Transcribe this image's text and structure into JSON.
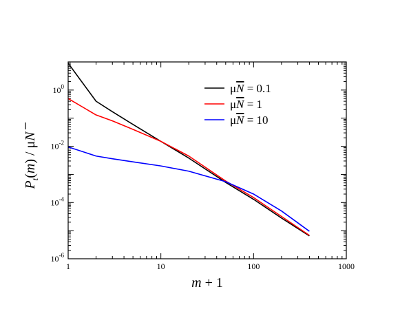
{
  "chart_data": {
    "type": "line",
    "xscale": "log",
    "yscale": "log",
    "xlim": [
      1,
      1000
    ],
    "ylim": [
      1e-06,
      10
    ],
    "xlabel": {
      "pre": "",
      "var": "m",
      "post": " + 1"
    },
    "ylabel": {
      "var": "P",
      "sub": "t",
      "mid": "(",
      "var2": "m",
      "post": ") / μ",
      "bar": "N"
    },
    "x_ticks": [
      {
        "value": 1,
        "label": "1"
      },
      {
        "value": 10,
        "label": "10"
      },
      {
        "value": 100,
        "label": "100"
      },
      {
        "value": 1000,
        "label": "1000"
      }
    ],
    "y_ticks": [
      {
        "value": 1,
        "base": "10",
        "exp": "0"
      },
      {
        "value": 0.01,
        "base": "10",
        "exp": "-2"
      },
      {
        "value": 0.0001,
        "base": "10",
        "exp": "-4"
      },
      {
        "value": 1e-06,
        "base": "10",
        "exp": "-6"
      }
    ],
    "legend_position": "top-right",
    "series": [
      {
        "name": "μN̄ = 0.1",
        "legend": {
          "pre": "μ",
          "bar": "N",
          "post": " = 0.1"
        },
        "color": "#000000",
        "points": [
          [
            1,
            9.0
          ],
          [
            2,
            0.4
          ],
          [
            3,
            0.17
          ],
          [
            5,
            0.06
          ],
          [
            10,
            0.015
          ],
          [
            20,
            0.0038
          ],
          [
            50,
            0.00052
          ],
          [
            100,
            0.00013
          ],
          [
            200,
            2.8e-05
          ],
          [
            400,
            6.5e-06
          ]
        ]
      },
      {
        "name": "μN̄ = 1",
        "legend": {
          "pre": "μ",
          "bar": "N",
          "post": " = 1"
        },
        "color": "#ff0000",
        "points": [
          [
            1,
            0.5
          ],
          [
            2,
            0.13
          ],
          [
            3,
            0.08
          ],
          [
            5,
            0.04
          ],
          [
            10,
            0.015
          ],
          [
            20,
            0.0045
          ],
          [
            50,
            0.00058
          ],
          [
            100,
            0.00015
          ],
          [
            200,
            3.2e-05
          ],
          [
            400,
            6.8e-06
          ]
        ]
      },
      {
        "name": "μN̄ = 10",
        "legend": {
          "pre": "μ",
          "bar": "N",
          "post": " = 10"
        },
        "color": "#0000ff",
        "points": [
          [
            1,
            0.0095
          ],
          [
            2,
            0.0045
          ],
          [
            3,
            0.0036
          ],
          [
            5,
            0.0028
          ],
          [
            10,
            0.002
          ],
          [
            20,
            0.0013
          ],
          [
            50,
            0.00055
          ],
          [
            100,
            0.0002
          ],
          [
            200,
            5e-05
          ],
          [
            400,
            9.5e-06
          ]
        ]
      }
    ]
  }
}
